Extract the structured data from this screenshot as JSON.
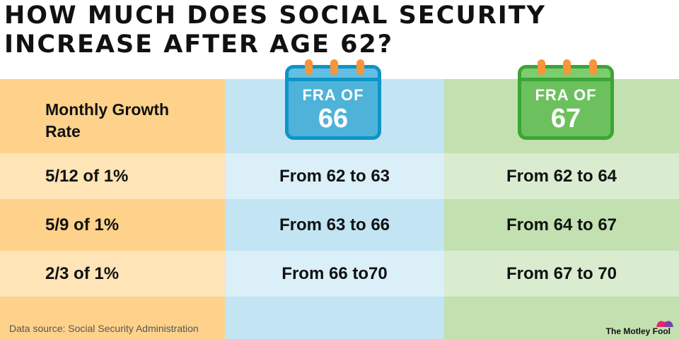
{
  "title": "How much does Social Security increase after age 62?",
  "header": {
    "row_label": "Monthly Growth Rate",
    "fra66": {
      "label": "FRA OF",
      "age": "66"
    },
    "fra67": {
      "label": "FRA OF",
      "age": "67"
    }
  },
  "rows": [
    {
      "rate": "5/12 of 1%",
      "fra66": "From 62 to 63",
      "fra67": "From 62 to 64"
    },
    {
      "rate": "5/9 of 1%",
      "fra66": "From 63 to 66",
      "fra67": "From 64 to 67"
    },
    {
      "rate": "2/3 of 1%",
      "fra66": "From 66 to70",
      "fra67": "From 67 to 70"
    }
  ],
  "source": "Data source: Social Security Administration",
  "brand": "The Motley Fool",
  "colors": {
    "orange": "#fed28b",
    "blue": "#c3e4f3",
    "green": "#c2e0b0",
    "calendar_blue": "#4fb3d9",
    "calendar_green": "#6cc15e",
    "ring": "#f7953a"
  }
}
